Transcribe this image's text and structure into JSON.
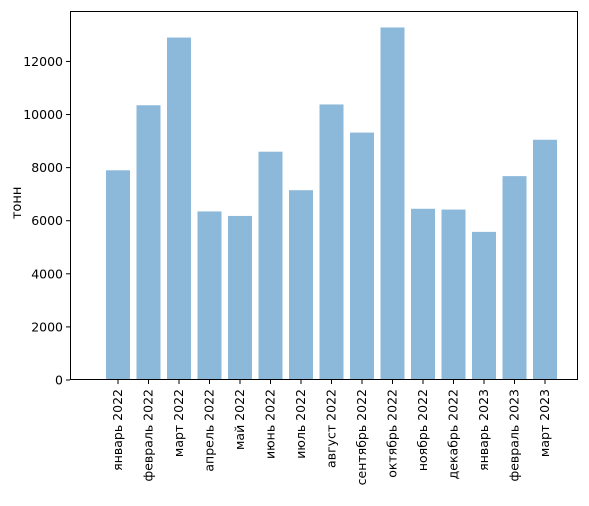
{
  "chart_data": {
    "type": "bar",
    "title": "",
    "xlabel": "",
    "ylabel": "тонн",
    "ylim": [
      0,
      13900
    ],
    "yticks": [
      0,
      2000,
      4000,
      6000,
      8000,
      10000,
      12000
    ],
    "grid": false,
    "bar_color": "#8cb9d9",
    "categories": [
      "январь 2022",
      "февраль 2022",
      "март 2022",
      "апрель 2022",
      "май 2022",
      "июнь 2022",
      "июль 2022",
      "август 2022",
      "сентябрь 2022",
      "октябрь 2022",
      "ноябрь 2022",
      "декабрь 2022",
      "январь 2023",
      "февраль 2023",
      "март 2023"
    ],
    "values": [
      7900,
      10350,
      12900,
      6350,
      6180,
      8600,
      7150,
      10380,
      9320,
      13280,
      6450,
      6420,
      5580,
      7680,
      9050
    ]
  }
}
